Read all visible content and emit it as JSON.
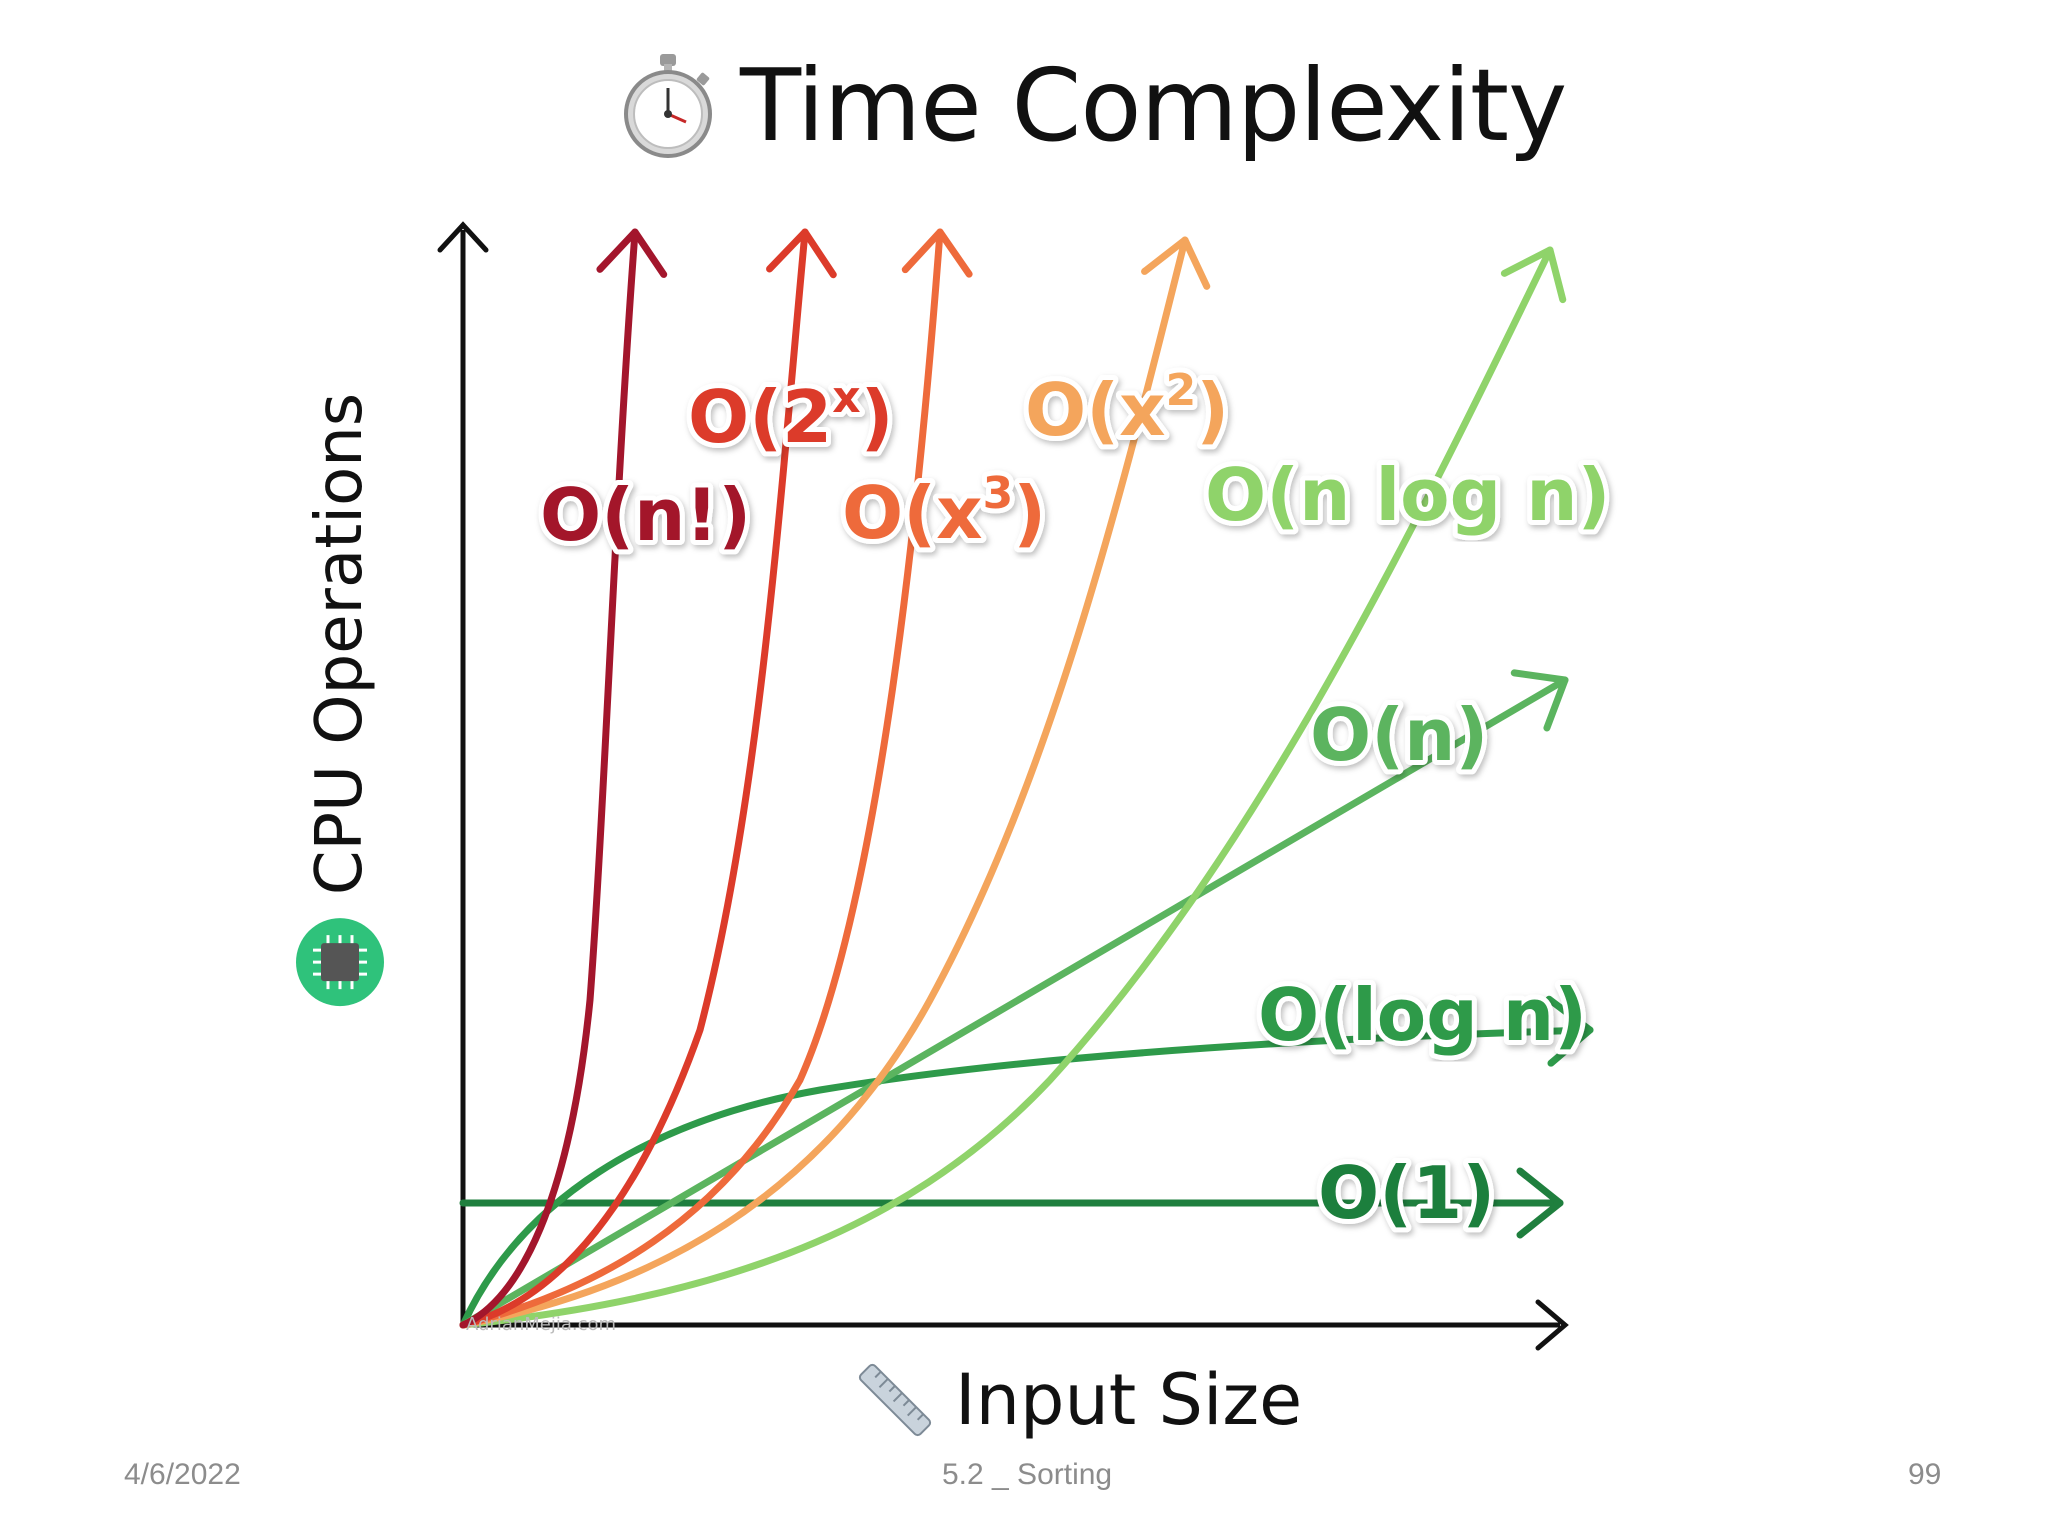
{
  "chart_data": {
    "type": "line",
    "title": "Time Complexity",
    "title_icon": "stopwatch-icon",
    "xlabel": "Input Size",
    "xlabel_icon": "ruler-icon",
    "ylabel": "CPU Operations",
    "ylabel_icon": "cpu-chip-icon",
    "watermark": "AdrianMejia.com",
    "grid": false,
    "series": [
      {
        "name": "O(n!)",
        "base": "O(n!)",
        "sup": "",
        "tail": "",
        "color": "#a3162c",
        "kind": "factorial"
      },
      {
        "name": "O(2^x)",
        "base": "O(2",
        "sup": "x",
        "tail": ")",
        "color": "#dc3b2a",
        "kind": "exponential"
      },
      {
        "name": "O(x^3)",
        "base": "O(x",
        "sup": "3",
        "tail": ")",
        "color": "#ee6a3b",
        "kind": "cubic"
      },
      {
        "name": "O(x^2)",
        "base": "O(x",
        "sup": "2",
        "tail": ")",
        "color": "#f4a55c",
        "kind": "quadratic"
      },
      {
        "name": "O(n log n)",
        "base": "O(n log n)",
        "sup": "",
        "tail": "",
        "color": "#8fd36a",
        "kind": "linearithmic"
      },
      {
        "name": "O(n)",
        "base": "O(n)",
        "sup": "",
        "tail": "",
        "color": "#5bb45f",
        "kind": "linear"
      },
      {
        "name": "O(log n)",
        "base": "O(log n)",
        "sup": "",
        "tail": "",
        "color": "#2e9a4a",
        "kind": "logarithmic"
      },
      {
        "name": "O(1)",
        "base": "O(1)",
        "sup": "",
        "tail": "",
        "color": "#1f7f3e",
        "kind": "constant"
      }
    ]
  },
  "footer": {
    "date": "4/6/2022",
    "center": "5.2 _ Sorting",
    "page": "99"
  }
}
